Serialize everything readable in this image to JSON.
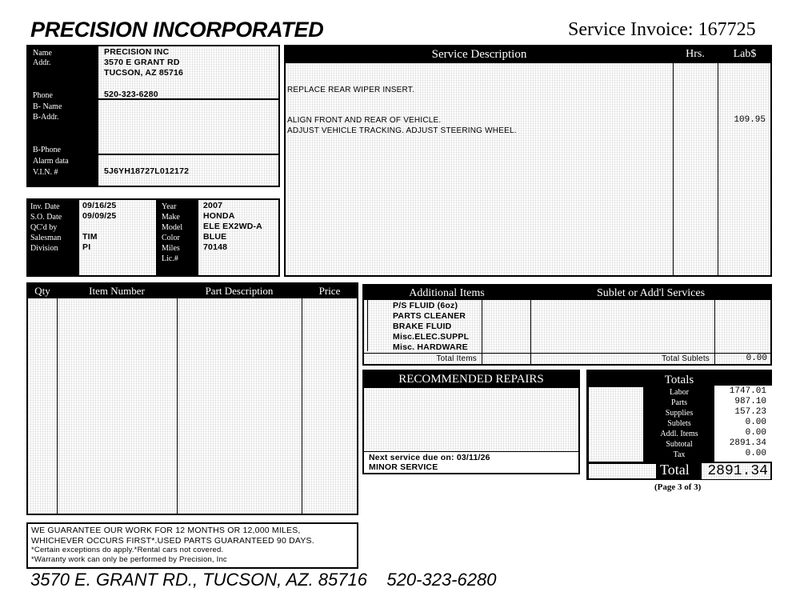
{
  "header": {
    "company": "PRECISION INCORPORATED",
    "invoice_label": "Service Invoice: 167725"
  },
  "customer": {
    "labels": {
      "name": "Name",
      "addr": "Addr.",
      "phone": "Phone",
      "b_name": "B- Name",
      "b_addr": "B-Addr.",
      "b_phone": "B-Phone",
      "alarm": "Alarm data",
      "vin": "V.I.N. #"
    },
    "name": "PRECISION INC",
    "addr1": "3570 E GRANT RD",
    "addr2": "TUCSON, AZ 85716",
    "phone": "520-323-6280",
    "vin": "5J6YH18727L012172"
  },
  "order": {
    "labels": {
      "inv_date": "Inv. Date",
      "so_date": "S.O. Date",
      "qc": "QC'd by",
      "salesman": "Salesman",
      "division": "Division",
      "year": "Year",
      "make": "Make",
      "model": "Model",
      "color": "Color",
      "miles": "Miles",
      "lic": "Lic.#"
    },
    "inv_date": "09/16/25",
    "so_date": "09/09/25",
    "salesman": "TIM",
    "division": "PI",
    "year": "2007",
    "make": "HONDA",
    "model": "ELE EX2WD-A",
    "color": "BLUE",
    "miles": "70148"
  },
  "service": {
    "headers": {
      "desc": "Service Description",
      "hrs": "Hrs.",
      "lab": "Lab$"
    },
    "lines": [
      "REPLACE REAR WIPER INSERT.",
      "ALIGN FRONT AND REAR OF VEHICLE.",
      "ADJUST VEHICLE TRACKING.  ADJUST STEERING WHEEL."
    ],
    "amount": "109.95"
  },
  "parts": {
    "headers": {
      "qty": "Qty",
      "item": "Item Number",
      "desc": "Part Description",
      "price": "Price"
    }
  },
  "additional": {
    "header": "Additional Items",
    "sublet_header": "Sublet or Add'l Services",
    "items": [
      "P/S FLUID (6oz)",
      "PARTS CLEANER",
      "BRAKE FLUID",
      "Misc.ELEC.SUPPL",
      "Misc. HARDWARE"
    ],
    "total_items_label": "Total Items",
    "total_sublets_label": "Total Sublets",
    "total_sublets": "0.00"
  },
  "recommended": {
    "header": "RECOMMENDED REPAIRS",
    "next_service": "Next service due on: 03/11/26",
    "service_type": "MINOR SERVICE"
  },
  "totals": {
    "header": "Totals",
    "rows": [
      {
        "label": "Labor",
        "value": "1747.01"
      },
      {
        "label": "Parts",
        "value": "987.10"
      },
      {
        "label": "Supplies",
        "value": "157.23"
      },
      {
        "label": "Sublets",
        "value": "0.00"
      },
      {
        "label": "Addl. Items",
        "value": "0.00"
      },
      {
        "label": "Subtotal",
        "value": "2891.34"
      },
      {
        "label": "Tax",
        "value": "0.00"
      }
    ],
    "total_label": "Total",
    "total": "2891.34"
  },
  "page": "(Page 3 of 3)",
  "guarantee": [
    "WE GUARANTEE OUR WORK FOR 12 MONTHS OR 12,000 MILES,",
    "WHICHEVER OCCURS FIRST*.USED PARTS GUARANTEED 90 DAYS.",
    "*Certain exceptions do apply.*Rental cars not covered.",
    "*Warranty work can only be performed by Precision, Inc"
  ],
  "footer": "3570 E. GRANT RD., TUCSON, AZ. 85716    520-323-6280"
}
